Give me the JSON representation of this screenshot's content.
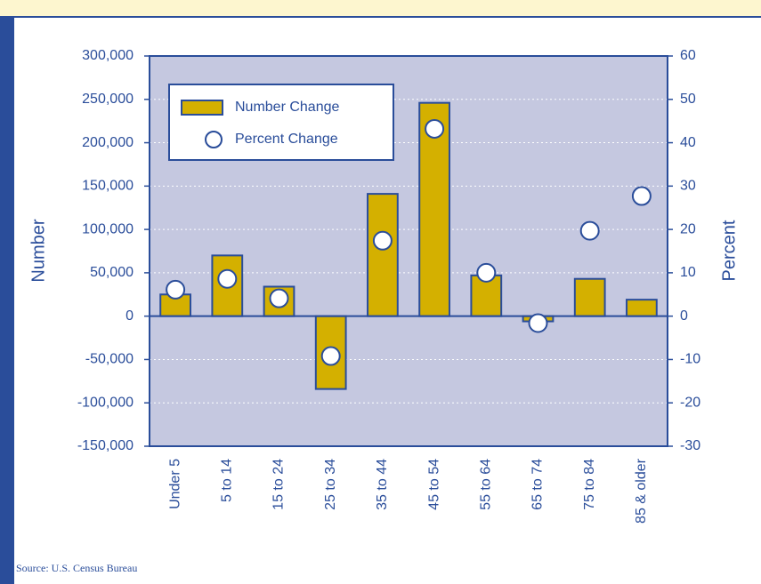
{
  "chart_data": {
    "type": "bar",
    "categories": [
      "Under 5",
      "5 to 14",
      "15 to 24",
      "25 to 34",
      "35 to 44",
      "45 to 54",
      "55 to 64",
      "65 to 74",
      "75 to 84",
      "85 & older"
    ],
    "series": [
      {
        "name": "Number Change",
        "color": "#d4b000",
        "values": [
          25000,
          70000,
          34000,
          -84000,
          141000,
          246000,
          47000,
          -6000,
          43000,
          19000
        ]
      },
      {
        "name": "Percent Change",
        "type": "scatter",
        "axis": "y2",
        "color": "#ffffff",
        "values": [
          6.1,
          8.6,
          4.1,
          -9.2,
          17.4,
          43.2,
          10.0,
          -1.6,
          19.7,
          27.7
        ]
      }
    ],
    "ylabel": "Number",
    "y2label": "Percent",
    "ylim": [
      -150000,
      300000
    ],
    "yticks": [
      {
        "value": -150000,
        "label": "-150,000"
      },
      {
        "value": -100000,
        "label": "-100,000"
      },
      {
        "value": -50000,
        "label": "-50,000"
      },
      0,
      {
        "value": 50000,
        "label": "50,000"
      },
      {
        "value": 100000,
        "label": "100,000"
      },
      {
        "value": 150000,
        "label": "150,000"
      },
      {
        "value": 200000,
        "label": "200,000"
      },
      {
        "value": 250000,
        "label": "250,000"
      },
      {
        "value": 300000,
        "label": "300,000"
      }
    ],
    "y2lim": [
      -30,
      60
    ],
    "y2ticks": [
      -30,
      -20,
      -10,
      0,
      10,
      20,
      30,
      40,
      50,
      60
    ],
    "grid": true,
    "legend": "upper left",
    "source": "Source: U.S. Census Bureau"
  }
}
